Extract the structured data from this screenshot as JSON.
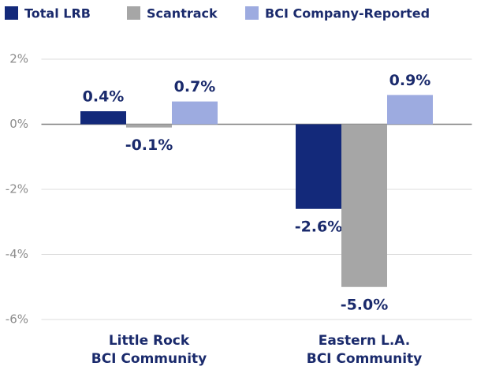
{
  "chart_data": {
    "type": "bar",
    "categories": [
      [
        "Little Rock",
        "BCI Community"
      ],
      [
        "Eastern L.A.",
        "BCI Community"
      ]
    ],
    "series": [
      {
        "name": "Total LRB",
        "color": "#13297a",
        "values": [
          0.4,
          -2.6
        ],
        "value_labels": [
          "0.4%",
          "-2.6%"
        ]
      },
      {
        "name": "Scantrack",
        "color": "#a6a6a6",
        "values": [
          -0.1,
          -5.0
        ],
        "value_labels": [
          "-0.1%",
          "-5.0%"
        ]
      },
      {
        "name": "BCI Company-Reported",
        "color": "#9dabe0",
        "values": [
          0.7,
          0.9
        ],
        "value_labels": [
          "0.7%",
          "0.9%"
        ]
      }
    ],
    "ylim": [
      -6,
      2
    ],
    "yticks": [
      {
        "value": 2,
        "label": "2%"
      },
      {
        "value": 0,
        "label": "0%"
      },
      {
        "value": -2,
        "label": "-2%"
      },
      {
        "value": -4,
        "label": "-4%"
      },
      {
        "value": -6,
        "label": "-6%"
      }
    ],
    "grid": true,
    "legend": "top"
  }
}
